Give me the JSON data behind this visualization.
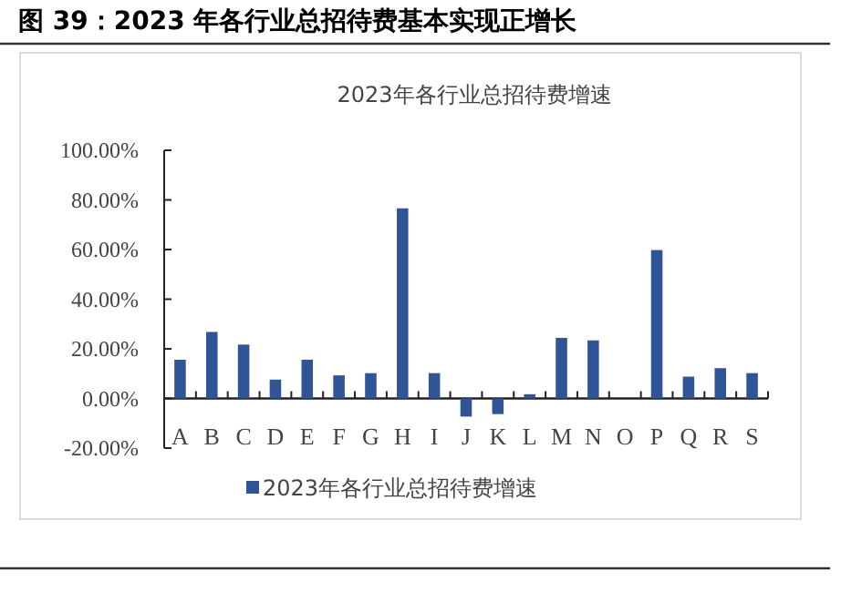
{
  "chart_data": {
    "type": "bar",
    "title": "图 39：2023 年各行业总招待费基本实现正增长",
    "subtitle": "2023年各行业总招待费增速",
    "categories": [
      "A",
      "B",
      "C",
      "D",
      "E",
      "F",
      "G",
      "H",
      "I",
      "J",
      "K",
      "L",
      "M",
      "N",
      "O",
      "P",
      "Q",
      "R",
      "S"
    ],
    "series": [
      {
        "name": "2023年各行业总招待费增速",
        "color": "#2f5597",
        "values": [
          15.6,
          26.8,
          21.7,
          7.6,
          15.6,
          9.3,
          10.2,
          76.6,
          10.2,
          -7.3,
          -6.3,
          1.7,
          24.4,
          23.4,
          0,
          59.8,
          8.8,
          12.2,
          10.2
        ]
      }
    ],
    "ylim": [
      -20,
      100
    ],
    "yticks": [
      {
        "value": -20,
        "label": "-20.00%"
      },
      {
        "value": 0,
        "label": "0.00%"
      },
      {
        "value": 20,
        "label": "20.00%"
      },
      {
        "value": 40,
        "label": "40.00%"
      },
      {
        "value": 60,
        "label": "60.00%"
      },
      {
        "value": 80,
        "label": "80.00%"
      },
      {
        "value": 100,
        "label": "100.00%"
      }
    ],
    "legend": "bottom"
  }
}
